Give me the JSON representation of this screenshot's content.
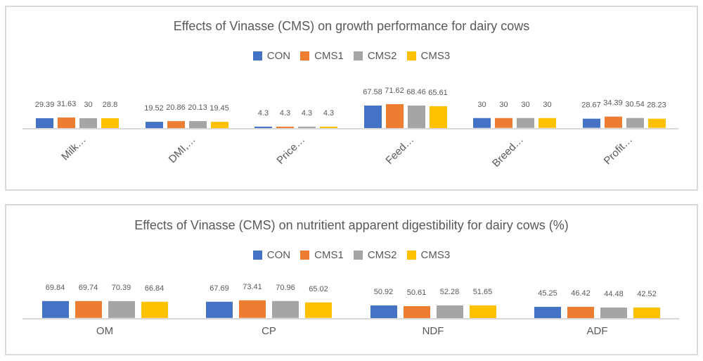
{
  "page": {
    "background": "#ffffff"
  },
  "palette": {
    "panel_border": "#d9d9d9",
    "axis_line": "#d9d9d9",
    "text_gray": "#595959"
  },
  "chart_data": [
    {
      "type": "bar",
      "title": "Effects of Vinasse (CMS) on growth performance for dairy cows",
      "categories": [
        "Milk…",
        "DMI,…",
        "Price…",
        "Feed…",
        "Breed…",
        "Profit…"
      ],
      "series": [
        {
          "name": "CON",
          "color": "#4472C4",
          "values": [
            29.39,
            19.52,
            4.3,
            67.58,
            30,
            28.67
          ]
        },
        {
          "name": "CMS1",
          "color": "#ED7D31",
          "values": [
            31.63,
            20.86,
            4.3,
            71.62,
            30,
            34.39
          ]
        },
        {
          "name": "CMS2",
          "color": "#A5A5A5",
          "values": [
            30,
            20.13,
            4.3,
            68.46,
            30,
            30.54
          ]
        },
        {
          "name": "CMS3",
          "color": "#FFC000",
          "values": [
            28.8,
            19.45,
            4.3,
            65.61,
            30,
            28.23
          ]
        }
      ],
      "legend_position": "top",
      "grid": false,
      "data_labels": true,
      "category_labels_rotated_deg": 45,
      "xlabel": "",
      "ylabel": "",
      "ylim": [
        0,
        80
      ]
    },
    {
      "type": "bar",
      "title": "Effects of Vinasse (CMS) on nutritient apparent digestibility for dairy cows (%)",
      "categories": [
        "OM",
        "CP",
        "NDF",
        "ADF"
      ],
      "series": [
        {
          "name": "CON",
          "color": "#4472C4",
          "values": [
            69.84,
            67.69,
            50.92,
            45.25
          ]
        },
        {
          "name": "CMS1",
          "color": "#ED7D31",
          "values": [
            69.74,
            73.41,
            50.61,
            46.42
          ]
        },
        {
          "name": "CMS2",
          "color": "#A5A5A5",
          "values": [
            70.39,
            70.96,
            52.28,
            44.48
          ]
        },
        {
          "name": "CMS3",
          "color": "#FFC000",
          "values": [
            66.84,
            65.02,
            51.65,
            42.52
          ]
        }
      ],
      "legend_position": "top",
      "grid": false,
      "data_labels": true,
      "category_labels_rotated_deg": 0,
      "xlabel": "",
      "ylabel": "",
      "ylim": [
        0,
        80
      ]
    }
  ]
}
